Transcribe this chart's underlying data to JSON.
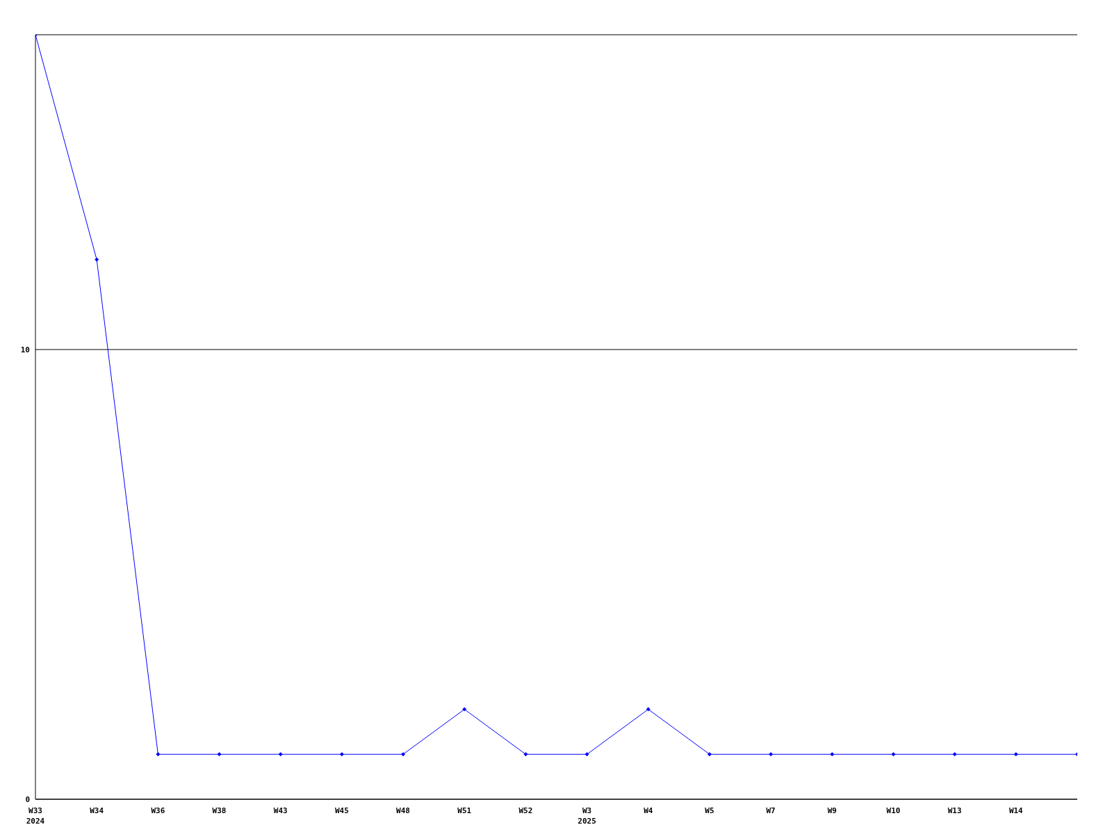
{
  "chart_data": {
    "type": "line",
    "categories": [
      "W33\n2024",
      "W34",
      "W36",
      "W38",
      "W43",
      "W45",
      "W48",
      "W51",
      "W52",
      "W3\n2025",
      "W4",
      "W5",
      "W7",
      "W9",
      "W10",
      "W13",
      "W14",
      null
    ],
    "series": [
      {
        "color": "#0000ff",
        "values": [
          17,
          12,
          1,
          1,
          1,
          1,
          1,
          2,
          1,
          1,
          2,
          1,
          1,
          1,
          1,
          1,
          1,
          1
        ]
      }
    ],
    "ylim": [
      0,
      17
    ],
    "yticks": [
      0,
      10
    ],
    "grid": "y",
    "marker": "diamond",
    "line_style": "solid"
  }
}
